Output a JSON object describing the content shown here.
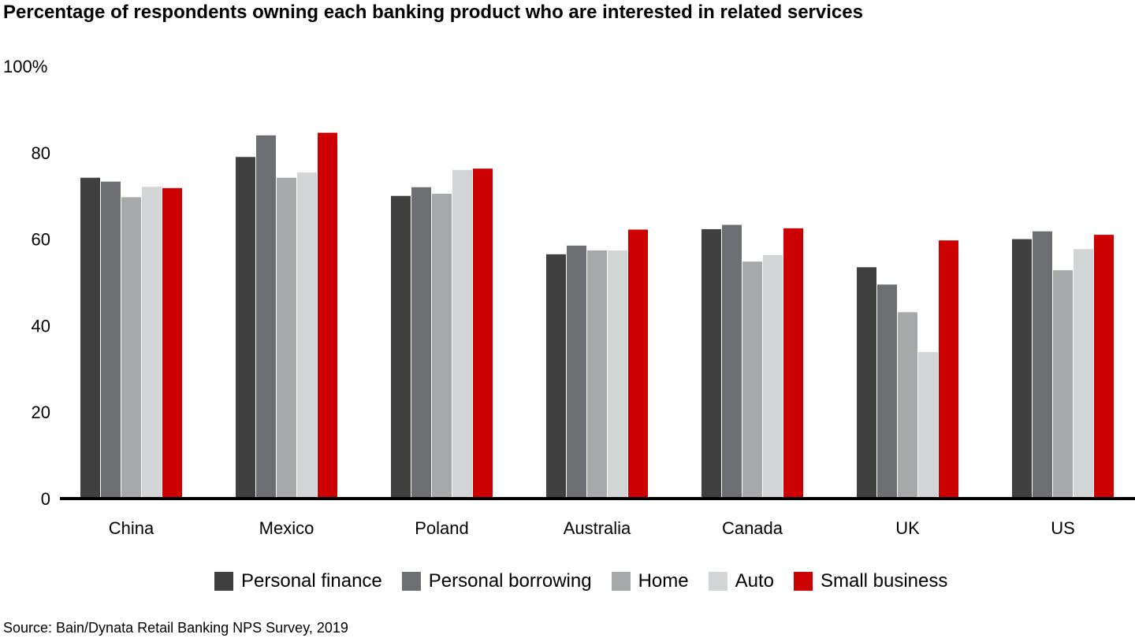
{
  "title": "Percentage of respondents owning each banking product who are interested in related services",
  "source": "Source: Bain/Dynata Retail Banking NPS Survey, 2019",
  "chart_data": {
    "type": "bar",
    "categories": [
      "China",
      "Mexico",
      "Poland",
      "Australia",
      "Canada",
      "UK",
      "US"
    ],
    "series": [
      {
        "name": "Personal finance",
        "color": "#404040",
        "values": [
          74.2,
          79.0,
          70.0,
          56.5,
          62.3,
          53.5,
          60.0
        ]
      },
      {
        "name": "Personal borrowing",
        "color": "#6d6e71",
        "values": [
          73.3,
          84.0,
          72.0,
          58.5,
          63.3,
          49.5,
          61.8
        ]
      },
      {
        "name": "Home",
        "color": "#a7a8aa",
        "values": [
          69.7,
          74.2,
          70.5,
          57.4,
          54.8,
          43.1,
          52.8
        ]
      },
      {
        "name": "Auto",
        "color": "#d3d4d6",
        "values": [
          72.1,
          75.4,
          76.0,
          57.4,
          56.3,
          33.9,
          57.7
        ]
      },
      {
        "name": "Small business",
        "color": "#cc0000",
        "values": [
          71.8,
          84.6,
          76.3,
          62.2,
          62.5,
          59.7,
          61.0
        ]
      }
    ],
    "yticks": [
      "0",
      "20",
      "40",
      "60",
      "80",
      "100%"
    ],
    "ylim": [
      0,
      100
    ]
  }
}
